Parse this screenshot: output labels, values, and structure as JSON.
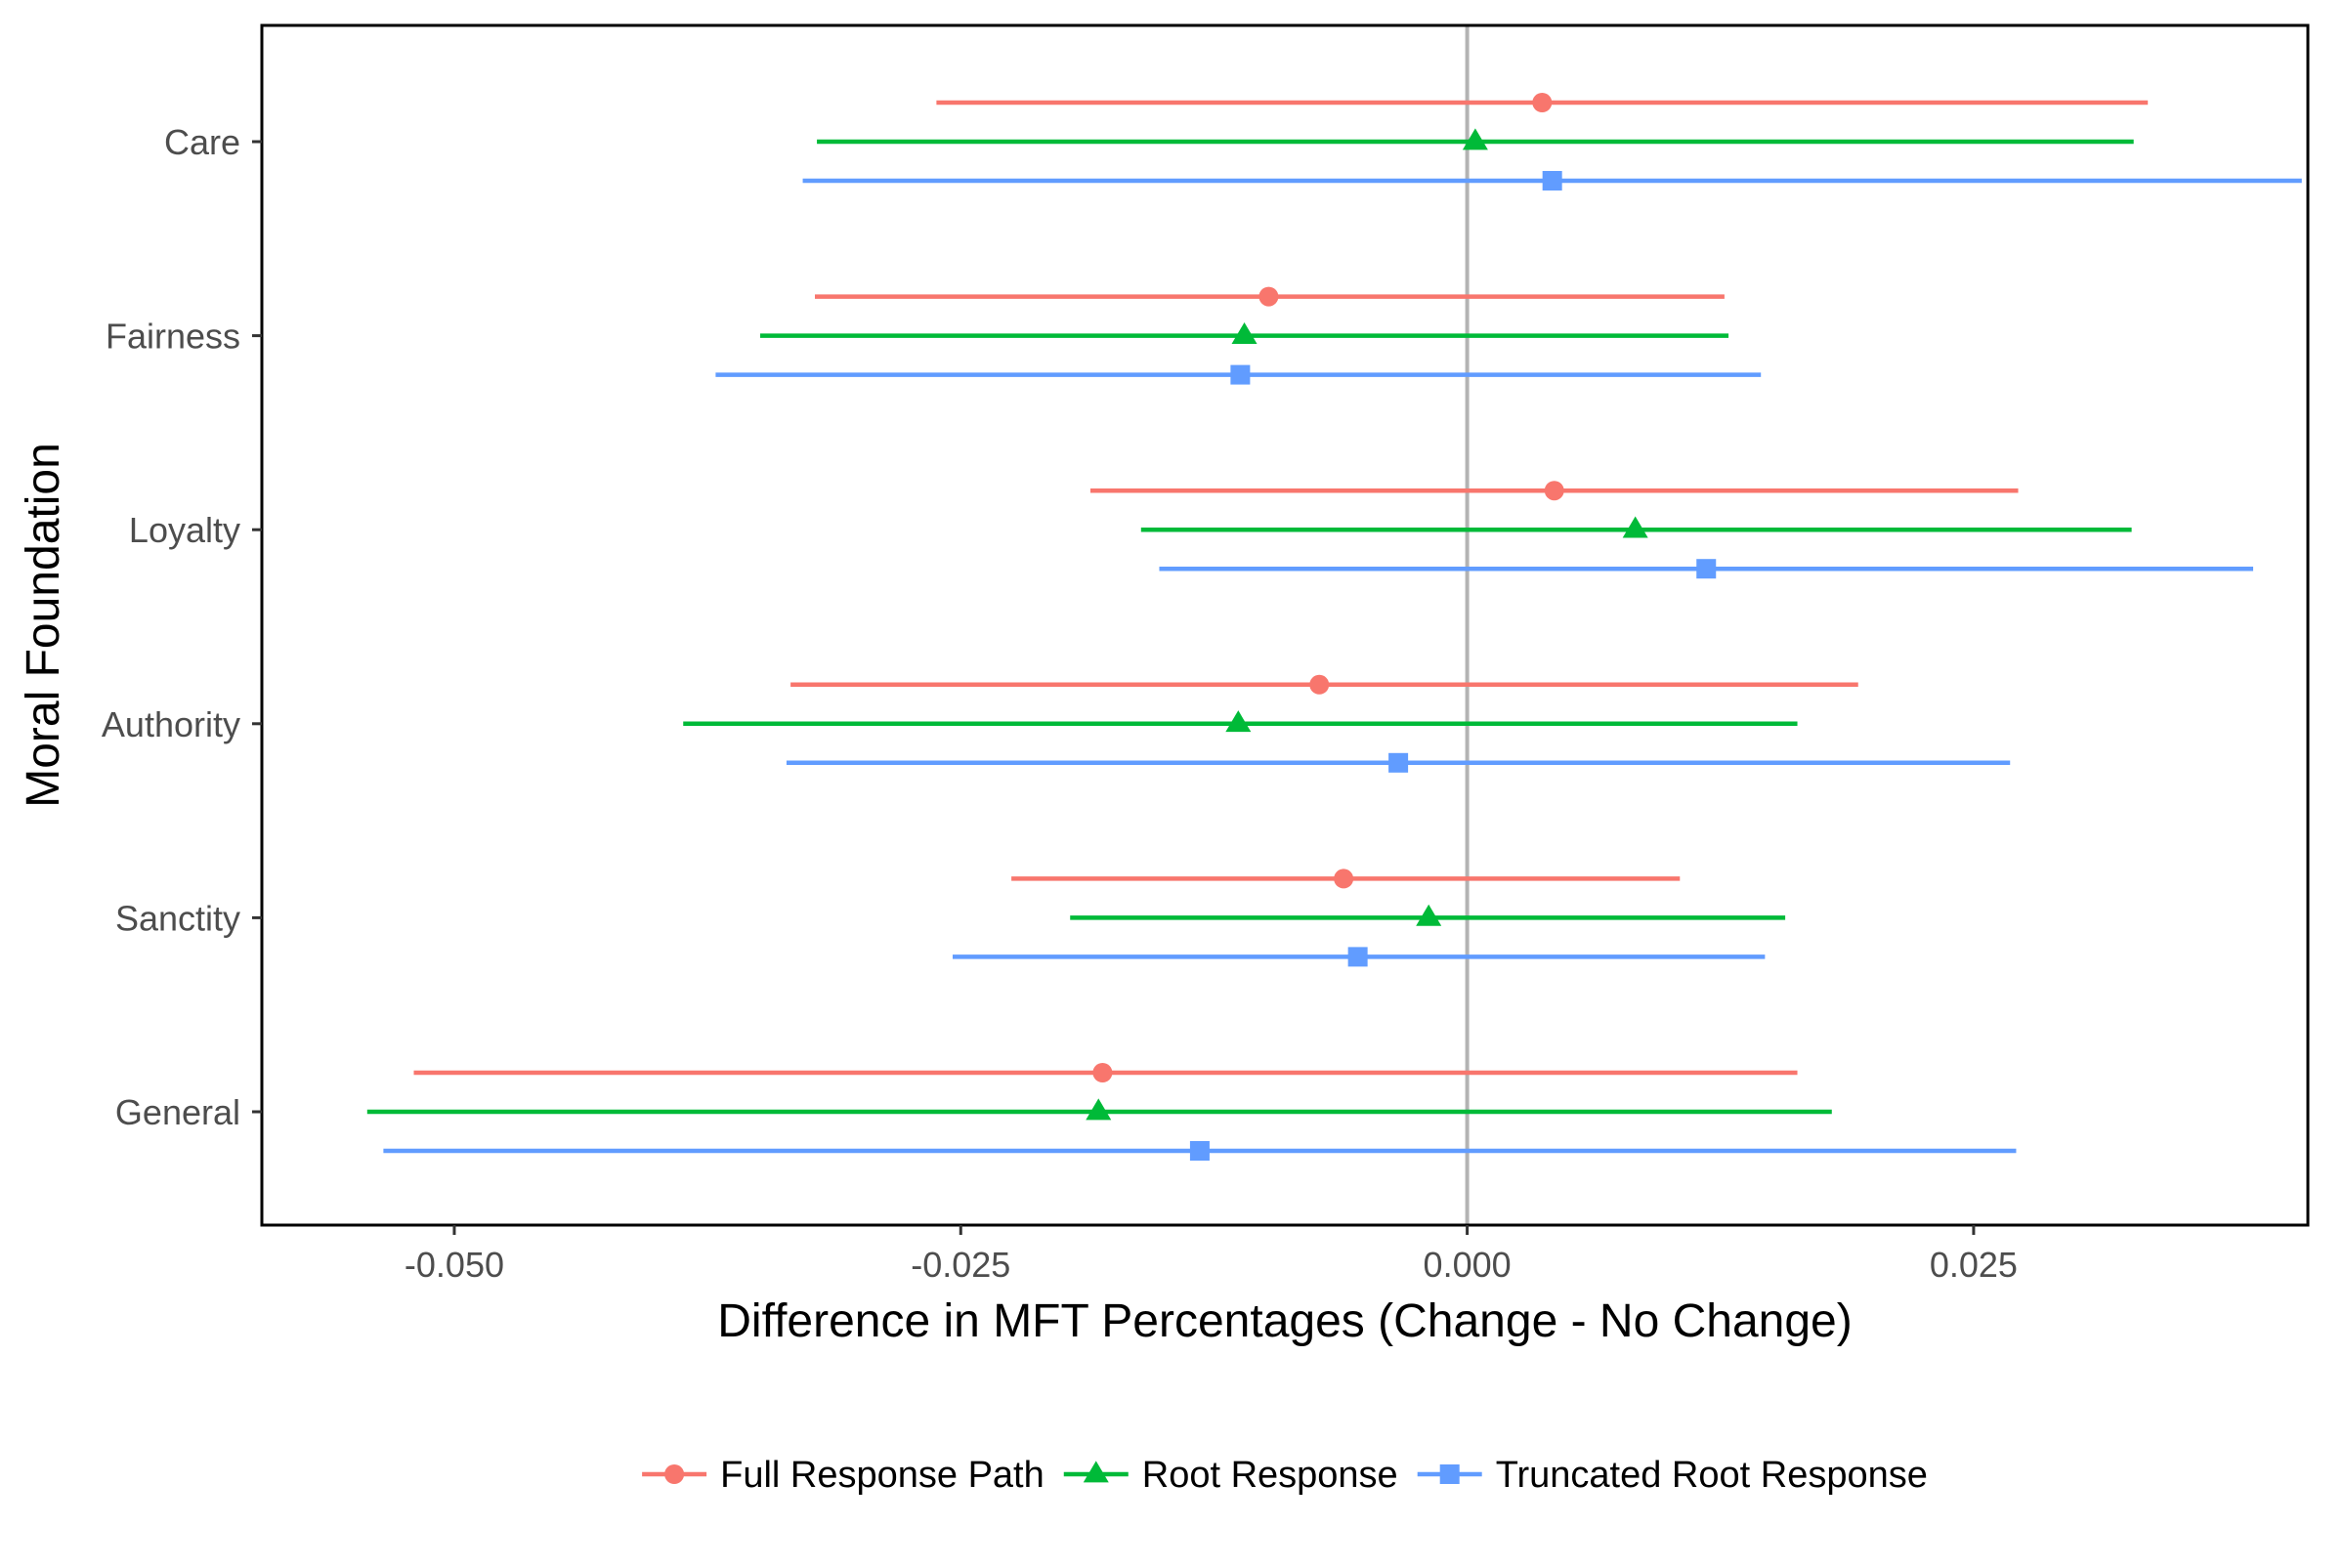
{
  "chart_data": {
    "type": "dot-whisker",
    "xlabel": "Difference in MFT Percentages (Change - No Change)",
    "ylabel": "Moral Foundation",
    "xlim": [
      -0.0595,
      0.0415
    ],
    "x_ticks": [
      -0.05,
      -0.025,
      0.0,
      0.025
    ],
    "x_tick_labels": [
      "-0.050",
      "-0.025",
      "0.000",
      "0.025"
    ],
    "reference_line_x": 0.0,
    "grid": false,
    "legend_position": "bottom",
    "categories": [
      "Care",
      "Fairness",
      "Loyalty",
      "Authority",
      "Sanctity",
      "General"
    ],
    "series": [
      {
        "name": "Full Response Path",
        "color": "#F8766D",
        "marker": "circle",
        "estimates": [
          0.0037,
          -0.0098,
          0.0043,
          -0.0073,
          -0.0061,
          -0.018
        ],
        "lower": [
          -0.0262,
          -0.0322,
          -0.0186,
          -0.0334,
          -0.0225,
          -0.052
        ],
        "upper": [
          0.0336,
          0.0127,
          0.0272,
          0.0193,
          0.0105,
          0.0163
        ]
      },
      {
        "name": "Root Response",
        "color": "#00BA38",
        "marker": "triangle",
        "estimates": [
          0.0004,
          -0.011,
          0.0083,
          -0.0113,
          -0.0019,
          -0.0182
        ],
        "lower": [
          -0.0321,
          -0.0349,
          -0.0161,
          -0.0387,
          -0.0196,
          -0.0543
        ],
        "upper": [
          0.0329,
          0.0129,
          0.0328,
          0.0163,
          0.0157,
          0.018
        ]
      },
      {
        "name": "Truncated Root Response",
        "color": "#619CFF",
        "marker": "square",
        "estimates": [
          0.0042,
          -0.0112,
          0.0118,
          -0.0034,
          -0.0054,
          -0.0132
        ],
        "lower": [
          -0.0328,
          -0.0371,
          -0.0152,
          -0.0336,
          -0.0254,
          -0.0535
        ],
        "upper": [
          0.0412,
          0.0145,
          0.0388,
          0.0268,
          0.0147,
          0.0271
        ]
      }
    ]
  }
}
